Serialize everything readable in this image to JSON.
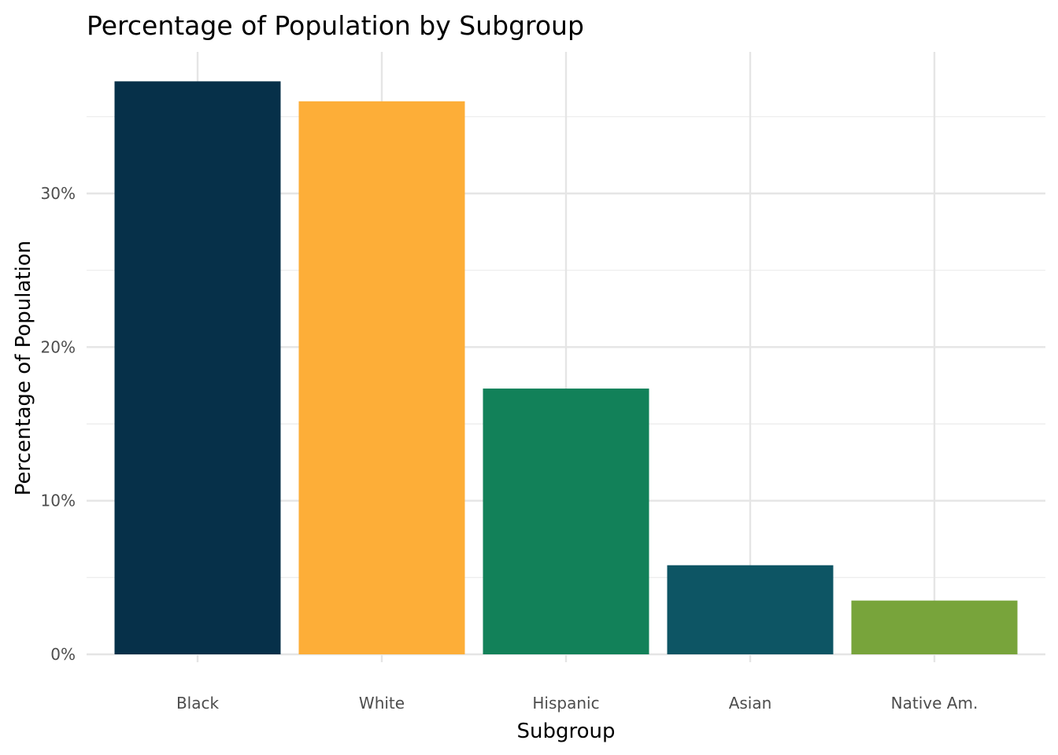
{
  "chart_data": {
    "type": "bar",
    "title": "Percentage of Population by Subgroup",
    "xlabel": "Subgroup",
    "ylabel": "Percentage of Population",
    "categories": [
      "Black",
      "White",
      "Hispanic",
      "Asian",
      "Native Am."
    ],
    "values": [
      37.3,
      36.0,
      17.3,
      5.8,
      3.5
    ],
    "colors": [
      "#063049",
      "#FDAE38",
      "#128159",
      "#0D5564",
      "#78A43B"
    ],
    "ylim": [
      0,
      38
    ],
    "yticks": [
      0,
      10,
      20,
      30
    ],
    "ytick_labels": [
      "0%",
      "10%",
      "20%",
      "30%"
    ],
    "grid": true,
    "legend": "none"
  }
}
